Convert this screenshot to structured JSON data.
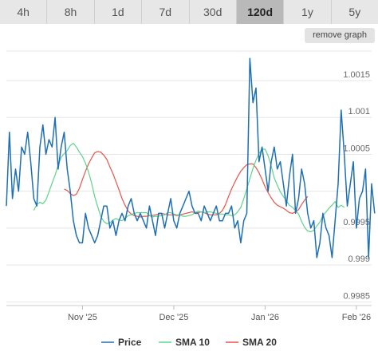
{
  "range_tabs": [
    {
      "label": "4h",
      "active": false
    },
    {
      "label": "8h",
      "active": false
    },
    {
      "label": "1d",
      "active": false
    },
    {
      "label": "7d",
      "active": false
    },
    {
      "label": "30d",
      "active": false
    },
    {
      "label": "120d",
      "active": true
    },
    {
      "label": "1y",
      "active": false
    },
    {
      "label": "5y",
      "active": false
    }
  ],
  "remove_graph_label": "remove graph",
  "colors": {
    "price": "#1f6fb4",
    "sma10": "#5fd48a",
    "sma20": "#e8544a",
    "tab_bg": "#e7e7e7",
    "tab_active": "#b9b9b9"
  },
  "chart_data": {
    "type": "line",
    "y_ticks": [
      0.9985,
      0.999,
      0.9995,
      1.0005,
      1.001,
      1.0015
    ],
    "y_tick_labels": [
      "0.9985",
      "0.999",
      "0.9995",
      "1.0005",
      "1.001",
      "1.0015"
    ],
    "ylim": [
      0.99845,
      1.0019
    ],
    "x_ticks": [
      "Nov '25",
      "Dec '25",
      "Jan '26",
      "Feb '26"
    ],
    "x_tick_positions": [
      25,
      55,
      85,
      115
    ],
    "xlim": [
      0,
      120
    ],
    "legend": [
      "Price",
      "SMA 10",
      "SMA 20"
    ],
    "series": [
      {
        "name": "Price",
        "values": [
          0.9998,
          1.0008,
          0.9999,
          1.0003,
          1.0,
          1.0006,
          1.0005,
          1.0008,
          1.0004,
          0.9999,
          0.9998,
          1.0006,
          1.0009,
          1.0005,
          1.0007,
          1.0006,
          1.001,
          1.0003,
          1.0006,
          1.0008,
          1.0003,
          1.0,
          0.9996,
          0.9994,
          0.9993,
          0.9993,
          0.9997,
          0.9995,
          0.9994,
          0.9993,
          0.9994,
          0.9996,
          0.9998,
          0.9998,
          0.9995,
          0.9996,
          0.9994,
          0.9996,
          0.9997,
          0.9996,
          0.9998,
          0.9999,
          0.9997,
          0.9996,
          0.9997,
          0.9996,
          0.9995,
          0.9998,
          0.9996,
          0.9994,
          0.9997,
          0.9997,
          0.9995,
          0.9997,
          0.9999,
          0.9996,
          0.9995,
          0.9997,
          0.9998,
          0.9999,
          1.0,
          0.9998,
          0.9997,
          0.9997,
          0.9996,
          0.9998,
          0.9997,
          0.9996,
          0.9997,
          0.9998,
          0.9996,
          0.9996,
          0.9997,
          0.9997,
          0.9998,
          0.9995,
          0.9996,
          0.9993,
          0.9996,
          0.9997,
          1.0018,
          1.0012,
          1.0014,
          1.0004,
          1.0006,
          1.0003,
          1.0,
          1.0004,
          1.0006,
          1.0003,
          1.0004,
          1.0001,
          0.9998,
          1.0002,
          1.0005,
          0.9997,
          0.9999,
          1.0003,
          1.0001,
          0.9997,
          0.9995,
          0.9996,
          0.9991,
          0.9993,
          0.9997,
          0.9995,
          0.9994,
          0.9991,
          0.9996,
          1.0001,
          1.0011,
          1.0005,
          0.9998,
          1.0001,
          1.0004,
          0.9995,
          0.9999,
          1.0,
          1.0003,
          0.9991,
          1.0001,
          0.9997
        ]
      },
      {
        "name": "SMA 10",
        "values": [
          0.99974,
          0.99982,
          0.99985,
          0.99983,
          0.99988,
          0.99999,
          1.00011,
          1.00022,
          1.00035,
          1.00046,
          1.00051,
          1.00055,
          1.00062,
          1.00065,
          1.0006,
          1.00053,
          1.00047,
          1.00038,
          1.00026,
          1.00011,
          0.99993,
          0.99979,
          0.99966,
          0.99959,
          0.99956,
          0.99957,
          0.99961,
          0.99963,
          0.99961,
          0.9996,
          0.99963,
          0.99967,
          0.99968,
          0.9997,
          0.99971,
          0.99971,
          0.99971,
          0.99971,
          0.99967,
          0.99965,
          0.99966,
          0.99966,
          0.99967,
          0.99968,
          0.99971,
          0.99971,
          0.99969,
          0.99968,
          0.99968,
          0.99966,
          0.99966,
          0.99967,
          0.99968,
          0.99971,
          0.99973,
          0.99972,
          0.99971,
          0.99972,
          0.99972,
          0.99971,
          0.9997,
          0.99969,
          0.99969,
          0.99968,
          0.99968,
          0.99967,
          0.99968,
          0.99972,
          0.99978,
          0.9999,
          1.00003,
          1.00017,
          1.00031,
          1.00042,
          1.00051,
          1.00057,
          1.00057,
          1.00048,
          1.00034,
          1.00018,
          1.00008,
          0.99999,
          0.99993,
          0.99987,
          0.99981,
          0.99978,
          0.99974,
          0.99969,
          0.99959,
          0.99951,
          0.99946,
          0.99945,
          0.99947,
          0.99953,
          0.99958,
          0.99967,
          0.99972,
          0.99977,
          0.99981,
          0.99986,
          0.99978,
          0.99981,
          0.99978
        ]
      },
      {
        "name": "SMA 20",
        "values": [
          1.00003,
          1.00001,
          0.99997,
          0.99994,
          0.99996,
          1.00004,
          1.00016,
          1.00027,
          1.00037,
          1.00045,
          1.00052,
          1.00054,
          1.00053,
          1.00049,
          1.00043,
          1.00033,
          1.00024,
          1.00013,
          1.00002,
          0.9999,
          0.99981,
          0.99973,
          0.99969,
          0.99967,
          0.99966,
          0.99965,
          0.99966,
          0.99966,
          0.99967,
          0.99967,
          0.99968,
          0.99969,
          0.9997,
          0.99969,
          0.99968,
          0.99968,
          0.99968,
          0.99967,
          0.99968,
          0.99969,
          0.9997,
          0.99971,
          0.99972,
          0.99971,
          0.99971,
          0.99972,
          0.99971,
          0.99969,
          0.99968,
          0.99968,
          0.99968,
          0.9997,
          0.99974,
          0.99982,
          0.99993,
          1.00003,
          1.00012,
          1.0002,
          1.00027,
          1.00032,
          1.00036,
          1.00037,
          1.00037,
          1.00032,
          1.00025,
          1.00016,
          1.00006,
          0.99998,
          0.99991,
          0.99985,
          0.99981,
          0.99979,
          0.99977,
          0.99974,
          0.99971,
          0.9997,
          0.99972,
          0.99975,
          0.99982,
          0.99988,
          0.99993
        ]
      }
    ]
  }
}
